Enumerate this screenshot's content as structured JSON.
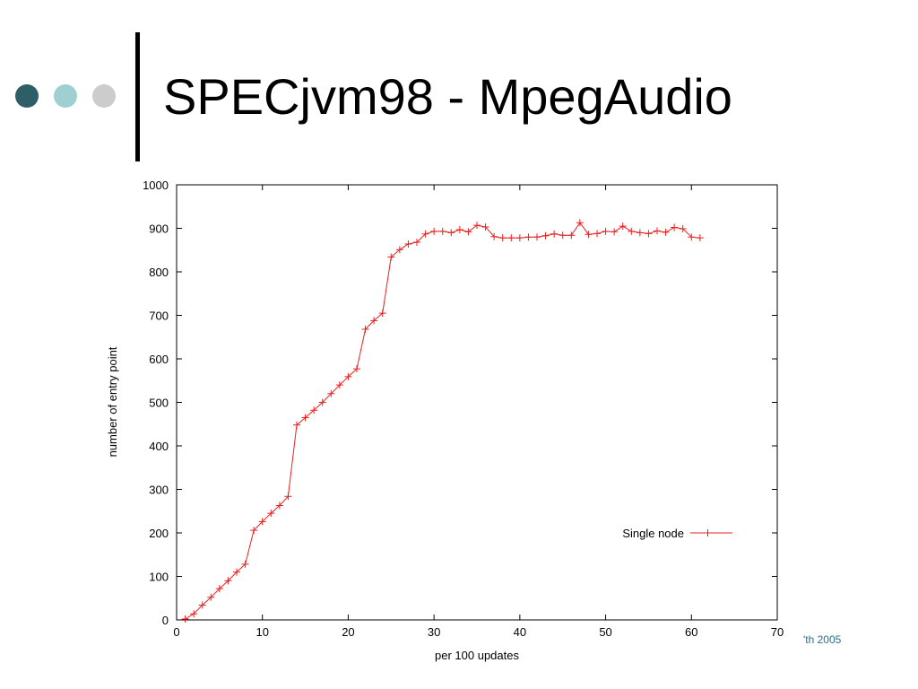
{
  "slide": {
    "title": "SPECjvm98 - MpegAudio",
    "footer": "'th 2005",
    "colors": {
      "dot1": "#2f5f66",
      "dot2": "#9ed0d2",
      "dot3": "#cccccc",
      "footer": "#2a6e8a",
      "series": "#e8201e"
    }
  },
  "chart_data": {
    "type": "line",
    "title": "",
    "xlabel": "per 100 updates",
    "ylabel": "number of entry point",
    "xlim": [
      0,
      70
    ],
    "ylim": [
      0,
      1000
    ],
    "xticks": [
      "0",
      "10",
      "20",
      "30",
      "40",
      "50",
      "60",
      "70"
    ],
    "yticks": [
      "0",
      "100",
      "200",
      "300",
      "400",
      "500",
      "600",
      "700",
      "800",
      "900",
      "1000"
    ],
    "grid": false,
    "legend": {
      "position": "bottom-right",
      "entries": [
        "Single node"
      ]
    },
    "series": [
      {
        "name": "Single node",
        "marker": "plus",
        "x": [
          1,
          2,
          3,
          4,
          5,
          6,
          7,
          8,
          9,
          10,
          11,
          12,
          13,
          14,
          15,
          16,
          17,
          18,
          19,
          20,
          21,
          22,
          23,
          24,
          25,
          26,
          27,
          28,
          29,
          30,
          31,
          32,
          33,
          34,
          35,
          36,
          37,
          38,
          39,
          40,
          41,
          42,
          43,
          44,
          45,
          46,
          47,
          48,
          49,
          50,
          51,
          52,
          53,
          54,
          55,
          56,
          57,
          58,
          59,
          60,
          61
        ],
        "y": [
          2,
          14,
          34,
          52,
          72,
          90,
          110,
          128,
          206,
          226,
          245,
          263,
          284,
          448,
          465,
          482,
          500,
          520,
          540,
          559,
          577,
          668,
          688,
          705,
          834,
          851,
          864,
          868,
          887,
          893,
          893,
          890,
          897,
          892,
          907,
          903,
          881,
          878,
          878,
          878,
          880,
          880,
          883,
          887,
          884,
          884,
          913,
          886,
          888,
          893,
          892,
          905,
          893,
          890,
          888,
          894,
          891,
          902,
          899,
          880,
          878
        ]
      }
    ]
  }
}
